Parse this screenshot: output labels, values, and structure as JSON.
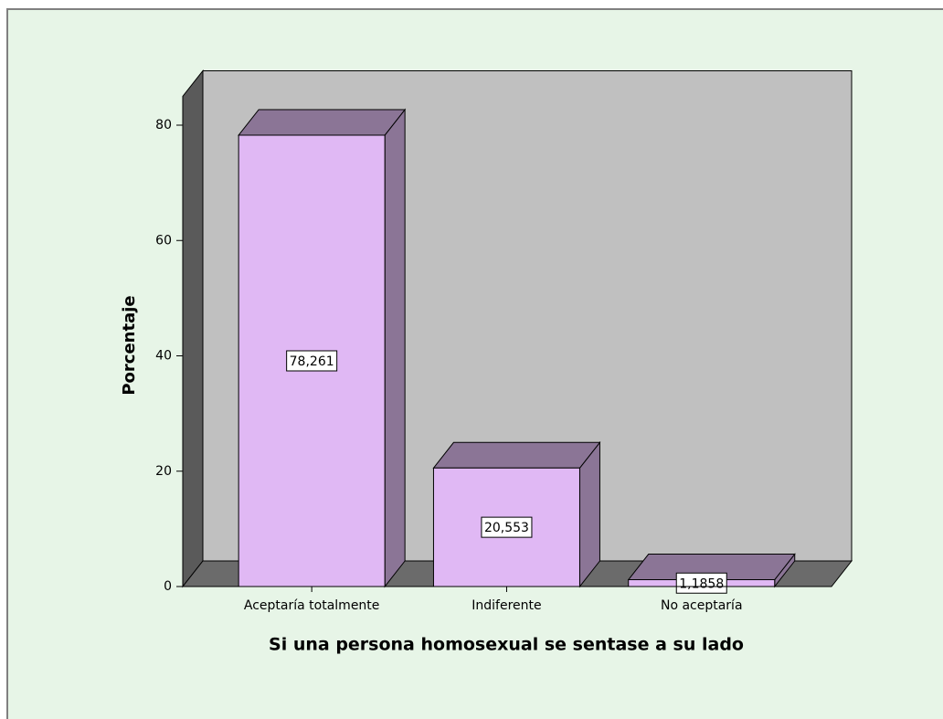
{
  "chart_data": {
    "type": "bar3d",
    "categories": [
      "Aceptaría totalmente",
      "Indiferente",
      "No aceptaría"
    ],
    "values": [
      78.261,
      20.553,
      1.1858
    ],
    "value_labels": [
      "78,261",
      "20,553",
      "1,1858"
    ],
    "color": "#e0b8f4",
    "ylabel": "Porcentaje",
    "xlabel": "Si una persona homosexual se sentase a su lado",
    "ylim": [
      0,
      85
    ],
    "yticks": [
      0,
      20,
      40,
      60,
      80
    ]
  }
}
